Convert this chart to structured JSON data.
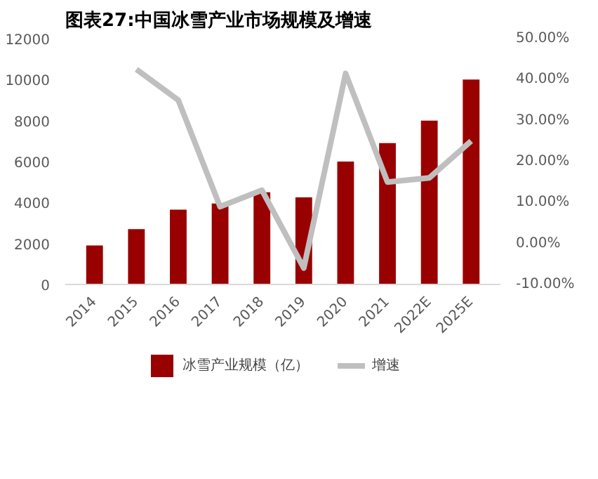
{
  "chart_data": {
    "type": "bar",
    "title": "图表27:中国冰雪产业市场规模及增速",
    "categories": [
      "2014",
      "2015",
      "2016",
      "2017",
      "2018",
      "2019",
      "2020",
      "2021",
      "2022E",
      "2025E"
    ],
    "series": [
      {
        "name": "冰雪产业规模（亿）",
        "color": "#990000",
        "values": [
          1900,
          2700,
          3650,
          3950,
          4500,
          4250,
          6000,
          6900,
          8000,
          10000
        ]
      },
      {
        "name": "增速",
        "type": "line",
        "axis": "y2",
        "color": "#bfbfbf",
        "values": [
          null,
          42.5,
          35,
          9,
          13,
          -6,
          41.5,
          15,
          16,
          25
        ]
      }
    ],
    "ylim": [
      0,
      12000
    ],
    "yticks": [
      0,
      2000,
      4000,
      6000,
      8000,
      10000,
      12000
    ],
    "y2lim": [
      -10,
      50
    ],
    "y2ticks": [
      {
        "value": -10,
        "label": "-10.00%"
      },
      {
        "value": 0,
        "label": "0.00%"
      },
      {
        "value": 10,
        "label": "10.00%"
      },
      {
        "value": 20,
        "label": "20.00%"
      },
      {
        "value": 30,
        "label": "30.00%"
      },
      {
        "value": 40,
        "label": "40.00%"
      },
      {
        "value": 50,
        "label": "50.00%"
      }
    ],
    "grid": false,
    "legend": "bottom"
  }
}
